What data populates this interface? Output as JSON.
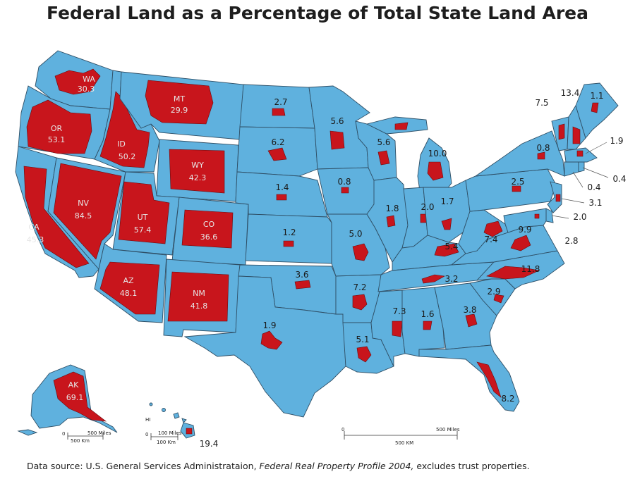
{
  "title": "Federal Land as a Percentage of Total State Land Area",
  "colors": {
    "state": "#5fb1de",
    "federal_land": "#c8151c",
    "border": "#2f4f66"
  },
  "states": {
    "WA": {
      "abbr": "WA",
      "value": "30.3"
    },
    "OR": {
      "abbr": "OR",
      "value": "53.1"
    },
    "CA": {
      "abbr": "CA",
      "value": "45.3"
    },
    "NV": {
      "abbr": "NV",
      "value": "84.5"
    },
    "ID": {
      "abbr": "ID",
      "value": "50.2"
    },
    "MT": {
      "abbr": "MT",
      "value": "29.9"
    },
    "WY": {
      "abbr": "WY",
      "value": "42.3"
    },
    "UT": {
      "abbr": "UT",
      "value": "57.4"
    },
    "CO": {
      "abbr": "CO",
      "value": "36.6"
    },
    "AZ": {
      "abbr": "AZ",
      "value": "48.1"
    },
    "NM": {
      "abbr": "NM",
      "value": "41.8"
    },
    "AK": {
      "abbr": "AK",
      "value": "69.1"
    },
    "HI": {
      "abbr": "HI",
      "value": "19.4"
    },
    "ND": {
      "value": "2.7"
    },
    "SD": {
      "value": "6.2"
    },
    "NE": {
      "value": "1.4"
    },
    "KS": {
      "value": "1.2"
    },
    "OK": {
      "value": "3.6"
    },
    "TX": {
      "value": "1.9"
    },
    "MN": {
      "value": "5.6"
    },
    "IA": {
      "value": "0.8"
    },
    "MO": {
      "value": "5.0"
    },
    "AR": {
      "value": "7.2"
    },
    "LA": {
      "value": "5.1"
    },
    "WI": {
      "value": "5.6"
    },
    "IL": {
      "value": "1.8"
    },
    "MI": {
      "value": "10.0"
    },
    "IN": {
      "value": "2.0"
    },
    "OH": {
      "value": "1.7"
    },
    "KY": {
      "value": "5.4"
    },
    "TN": {
      "value": "3.2"
    },
    "MS": {
      "value": "7.3"
    },
    "AL": {
      "value": "1.6"
    },
    "GA": {
      "value": "3.8"
    },
    "FL": {
      "value": "8.2"
    },
    "SC": {
      "value": "2.9"
    },
    "NC": {
      "value": "11.8"
    },
    "VA": {
      "value": "9.9"
    },
    "WV": {
      "value": "7.4"
    },
    "PA": {
      "value": "2.5"
    },
    "NY": {
      "value": "0.8"
    },
    "VT": {
      "value": "7.5"
    },
    "NH": {
      "value": "13.4"
    },
    "ME": {
      "value": "1.1"
    },
    "MA": {
      "value": "1.9"
    },
    "RI": {
      "value": "0.4"
    },
    "CT": {
      "value": "0.4"
    },
    "NJ": {
      "value": "3.1"
    },
    "DE": {
      "value": "2.0"
    },
    "MD": {
      "value": "2.8"
    }
  },
  "scales": {
    "alaska": {
      "miles": "500 Miles",
      "km": "500 Km",
      "zero": "0"
    },
    "hawaii": {
      "miles": "100 Miles",
      "km": "100 Km",
      "zero": "0"
    },
    "main": {
      "miles": "500 Miles",
      "km": "500 KM",
      "zero": "0"
    }
  },
  "footer": {
    "prefix": "Data source: U.S. General Services Administrataion, ",
    "italic": "Federal Real Property Profile 2004,",
    "suffix": " excludes trust properties."
  }
}
